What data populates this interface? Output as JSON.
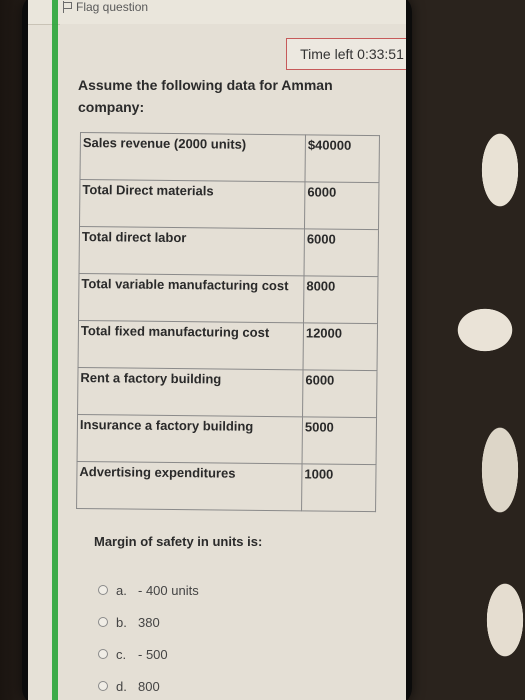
{
  "header": {
    "flag_label": "Flag question",
    "time_left": "Time left 0:33:51"
  },
  "question": {
    "text": "Assume the following data for Amman company:"
  },
  "table": {
    "rows": [
      {
        "label": "Sales revenue (2000 units)",
        "value": "$40000"
      },
      {
        "label": "Total Direct materials",
        "value": "6000"
      },
      {
        "label": "Total direct labor",
        "value": "6000"
      },
      {
        "label": "Total variable manufacturing cost",
        "value": "8000"
      },
      {
        "label": "Total fixed manufacturing cost",
        "value": "12000"
      },
      {
        "label": "Rent a factory building",
        "value": "6000"
      },
      {
        "label": "Insurance a factory building",
        "value": "5000"
      },
      {
        "label": "Advertising expenditures",
        "value": "1000"
      }
    ]
  },
  "prompt": "Margin of safety in units is:",
  "options": [
    {
      "letter": "a.",
      "text": "- 400 units"
    },
    {
      "letter": "b.",
      "text": "380"
    },
    {
      "letter": "c.",
      "text": "- 500"
    },
    {
      "letter": "d.",
      "text": "800"
    }
  ],
  "colors": {
    "accent_green": "#2aa53a",
    "timer_border": "#c65a5a"
  }
}
